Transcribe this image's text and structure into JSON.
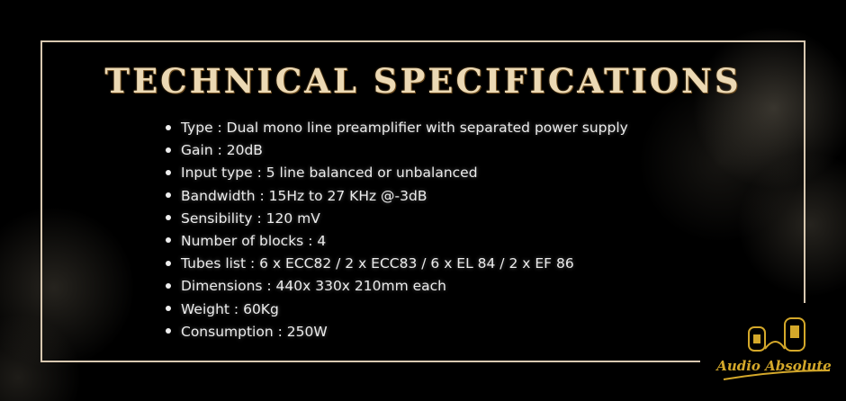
{
  "title": "TECHNICAL SPECIFICATIONS",
  "specs": [
    "Type : Dual mono line preamplifier with separated power supply",
    "Gain : 20dB",
    "Input type : 5 line balanced or unbalanced",
    "Bandwidth : 15Hz to 27 KHz @-3dB",
    "Sensibility : 120 mV",
    "Number of blocks : 4",
    "Tubes list : 6 x ECC82 / 2 x ECC83 / 6 x EL 84 / 2 x EF 86",
    "Dimensions : 440x 330x 210mm each",
    "Weight : 60Kg",
    "Consumption : 250W"
  ],
  "logo": {
    "text": "Audio Absolute",
    "color": "#d4a82a"
  },
  "colors": {
    "frame": "#d8c8b0",
    "title": "#ecd9b4"
  }
}
